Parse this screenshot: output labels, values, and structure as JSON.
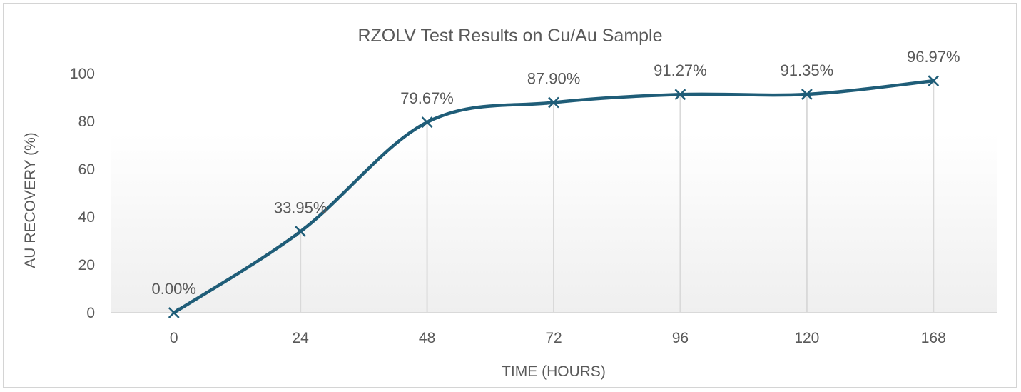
{
  "chart_data": {
    "type": "line",
    "title": "RZOLV Test Results on Cu/Au Sample",
    "xlabel": "TIME (HOURS)",
    "ylabel": "AU RECOVERY (%)",
    "categories": [
      "0",
      "24",
      "48",
      "72",
      "96",
      "120",
      "168"
    ],
    "series": [
      {
        "values": [
          0.0,
          33.95,
          79.67,
          87.9,
          91.27,
          91.35,
          96.97
        ],
        "labels": [
          "0.00%",
          "33.95%",
          "79.67%",
          "87.90%",
          "91.27%",
          "91.35%",
          "96.97%"
        ],
        "color": "#1f5d78",
        "marker": "x",
        "smooth": true
      }
    ],
    "ylim": [
      0,
      100
    ],
    "yticks": [
      "0",
      "20",
      "40",
      "60",
      "80",
      "100"
    ],
    "grid": false,
    "drop_lines": true,
    "legend": "none",
    "colors": {
      "line": "#1f5d78",
      "drop_line": "#d9d9d9",
      "axis": "#d9d9d9",
      "text": "#595959",
      "plot_gradient_bottom": "#efefef"
    }
  }
}
